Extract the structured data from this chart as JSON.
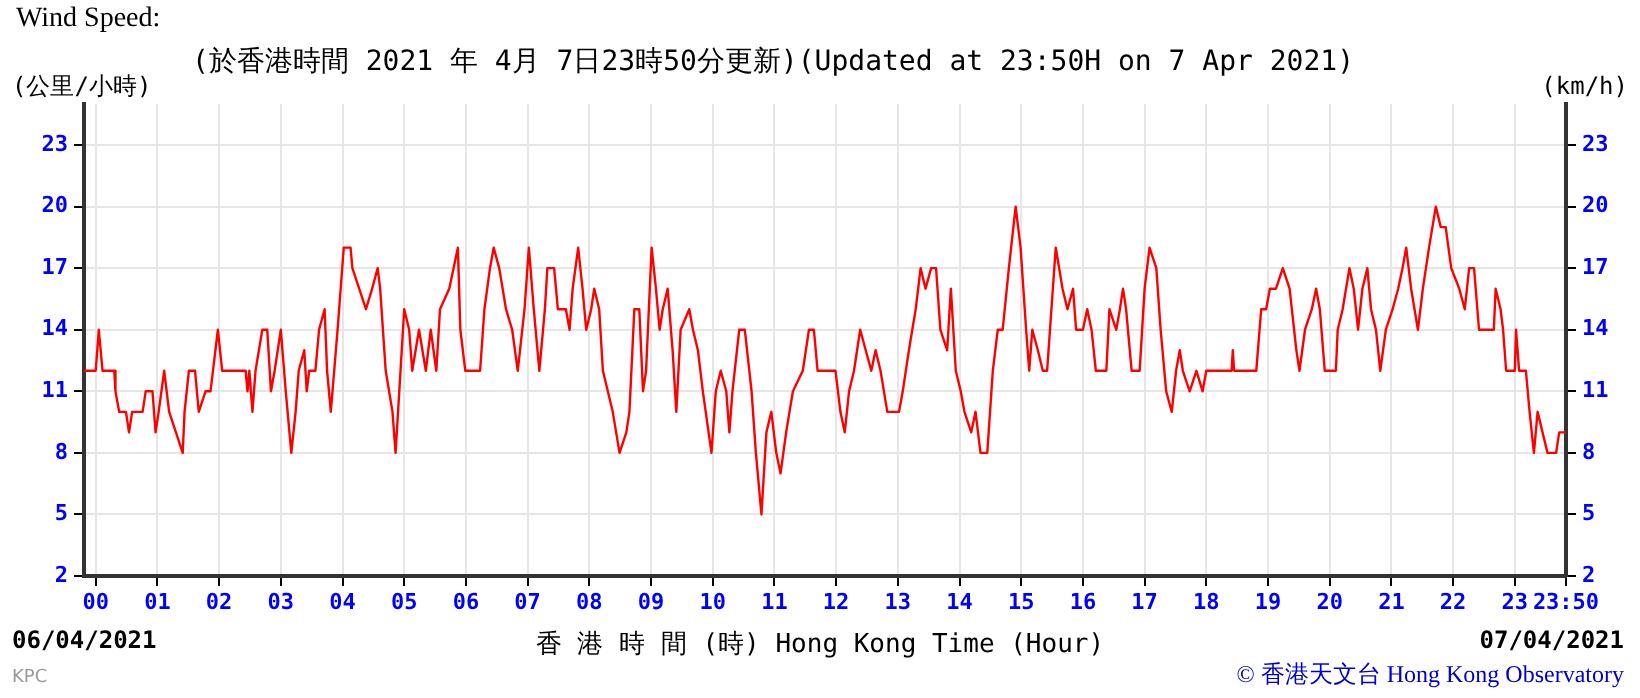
{
  "chart_data": {
    "type": "line",
    "title": "Wind Speed:",
    "subtitle": "(於香港時間 2021 年 4月 7日23時50分更新)(Updated at 23:50H on 7 Apr 2021)",
    "xlabel": "香 港 時 間 (時) Hong Kong Time (Hour)",
    "ylabel": "(公里/小時)",
    "y2label": "(km/h)",
    "annotations": [
      "06/04/2021",
      "07/04/2021",
      "KPC",
      "© 香港天文台 Hong Kong Observatory"
    ],
    "x": [
      -0.19,
      0,
      0.05,
      0.11,
      0.3,
      0.32,
      0.38,
      0.49,
      0.54,
      0.59,
      0.76,
      0.81,
      0.92,
      0.97,
      1.02,
      1.11,
      1.19,
      1.3,
      1.41,
      1.44,
      1.51,
      1.61,
      1.67,
      1.78,
      1.86,
      1.9,
      1.98,
      2.05,
      2.43,
      2.46,
      2.49,
      2.54,
      2.59,
      2.7,
      2.78,
      2.84,
      2.9,
      3.0,
      3.08,
      3.17,
      3.24,
      3.29,
      3.38,
      3.42,
      3.46,
      3.56,
      3.62,
      3.71,
      3.75,
      3.81,
      3.92,
      4.02,
      4.13,
      4.16,
      4.27,
      4.38,
      4.48,
      4.57,
      4.61,
      4.7,
      4.81,
      4.86,
      4.94,
      5.0,
      5.08,
      5.13,
      5.24,
      5.35,
      5.43,
      5.52,
      5.58,
      5.73,
      5.8,
      5.87,
      5.91,
      5.99,
      6.23,
      6.3,
      6.39,
      6.45,
      6.54,
      6.65,
      6.75,
      6.84,
      6.95,
      7.02,
      7.1,
      7.19,
      7.28,
      7.32,
      7.43,
      7.49,
      7.62,
      7.68,
      7.73,
      7.82,
      7.89,
      7.95,
      8.03,
      8.08,
      8.16,
      8.22,
      8.38,
      8.49,
      8.6,
      8.65,
      8.73,
      8.81,
      8.87,
      8.92,
      9.01,
      9.08,
      9.14,
      9.19,
      9.27,
      9.35,
      9.41,
      9.48,
      9.62,
      9.68,
      9.76,
      9.84,
      9.98,
      10.05,
      10.13,
      10.22,
      10.27,
      10.32,
      10.43,
      10.52,
      10.63,
      10.7,
      10.79,
      10.87,
      10.95,
      11.03,
      11.1,
      11.19,
      11.3,
      11.46,
      11.56,
      11.64,
      11.7,
      11.99,
      12.07,
      12.14,
      12.21,
      12.29,
      12.39,
      12.48,
      12.57,
      12.64,
      12.72,
      12.83,
      13.02,
      13.08,
      13.18,
      13.29,
      13.37,
      13.45,
      13.54,
      13.62,
      13.69,
      13.8,
      13.86,
      13.94,
      14.02,
      14.08,
      14.19,
      14.26,
      14.34,
      14.45,
      14.54,
      14.62,
      14.7,
      14.8,
      14.91,
      14.99,
      15.08,
      15.13,
      15.18,
      15.27,
      15.35,
      15.42,
      15.49,
      15.56,
      15.67,
      15.75,
      15.84,
      15.89,
      16.0,
      16.07,
      16.14,
      16.21,
      16.38,
      16.43,
      16.54,
      16.6,
      16.65,
      16.7,
      16.79,
      16.92,
      17.0,
      17.08,
      17.19,
      17.26,
      17.35,
      17.44,
      17.51,
      17.57,
      17.62,
      17.73,
      17.84,
      17.94,
      18.0,
      18.41,
      18.43,
      18.45,
      18.81,
      18.89,
      18.97,
      19.03,
      19.13,
      19.24,
      19.35,
      19.46,
      19.51,
      19.6,
      19.71,
      19.78,
      19.84,
      19.92,
      20.1,
      20.13,
      20.21,
      20.32,
      20.39,
      20.46,
      20.53,
      20.61,
      20.67,
      20.75,
      20.82,
      20.91,
      21.02,
      21.11,
      21.18,
      21.24,
      21.32,
      21.43,
      21.51,
      21.61,
      21.72,
      21.8,
      21.88,
      21.97,
      22.1,
      22.19,
      22.26,
      22.34,
      22.42,
      22.66,
      22.69,
      22.77,
      22.81,
      22.86,
      23.0,
      23.02,
      23.07,
      23.18,
      23.24,
      23.31,
      23.37,
      23.45,
      23.53,
      23.67,
      23.72,
      23.83
    ],
    "series": [
      {
        "color": "#ff0000",
        "values": [
          12,
          12,
          14,
          12,
          12,
          11,
          10,
          10,
          9,
          10,
          10,
          11,
          11,
          9,
          10,
          12,
          10,
          9,
          8,
          10,
          12,
          12,
          10,
          11,
          11,
          12,
          14,
          12,
          12,
          11,
          12,
          10,
          12,
          14,
          14,
          11,
          12,
          14,
          11,
          8,
          10,
          12,
          13,
          11,
          12,
          12,
          14,
          15,
          12,
          10,
          14,
          18,
          18,
          17,
          16,
          15,
          16,
          17,
          16,
          12,
          10,
          8,
          12,
          15,
          14,
          12,
          14,
          12,
          14,
          12,
          15,
          16,
          17,
          18,
          14,
          12,
          12,
          15,
          17,
          18,
          17,
          15,
          14,
          12,
          15,
          18,
          15,
          12,
          15,
          17,
          17,
          15,
          15,
          14,
          16,
          18,
          16,
          14,
          15,
          16,
          15,
          12,
          10,
          8,
          9,
          10,
          15,
          15,
          11,
          12,
          18,
          16,
          14,
          15,
          16,
          13,
          10,
          14,
          15,
          14,
          13,
          11,
          8,
          11,
          12,
          11,
          9,
          11,
          14,
          14,
          11,
          8,
          5,
          9,
          10,
          8,
          7,
          9,
          11,
          12,
          14,
          14,
          12,
          12,
          10,
          9,
          11,
          12,
          14,
          13,
          12,
          13,
          12,
          10,
          10,
          11,
          13,
          15,
          17,
          16,
          17,
          17,
          14,
          13,
          16,
          12,
          11,
          10,
          9,
          10,
          8,
          8,
          12,
          14,
          14,
          17,
          20,
          18,
          14,
          12,
          14,
          13,
          12,
          12,
          15,
          18,
          16,
          15,
          16,
          14,
          14,
          15,
          14,
          12,
          12,
          15,
          14,
          15,
          16,
          15,
          12,
          12,
          16,
          18,
          17,
          14,
          11,
          10,
          12,
          13,
          12,
          11,
          12,
          11,
          12,
          12,
          13,
          12,
          12,
          15,
          15,
          16,
          16,
          17,
          16,
          13,
          12,
          14,
          15,
          16,
          15,
          12,
          12,
          14,
          15,
          17,
          16,
          14,
          16,
          17,
          15,
          14,
          12,
          14,
          15,
          16,
          17,
          18,
          16,
          14,
          16,
          18,
          20,
          19,
          19,
          17,
          16,
          15,
          17,
          17,
          14,
          14,
          16,
          15,
          14,
          12,
          12,
          14,
          12,
          12,
          10,
          8,
          10,
          9,
          8,
          8,
          9,
          9
        ]
      }
    ],
    "xlim": [
      -0.19,
      23.83
    ],
    "xticks": [
      {
        "value": 0,
        "label": "00"
      },
      {
        "value": 1,
        "label": "01"
      },
      {
        "value": 2,
        "label": "02"
      },
      {
        "value": 3,
        "label": "03"
      },
      {
        "value": 4,
        "label": "04"
      },
      {
        "value": 5,
        "label": "05"
      },
      {
        "value": 6,
        "label": "06"
      },
      {
        "value": 7,
        "label": "07"
      },
      {
        "value": 8,
        "label": "08"
      },
      {
        "value": 9,
        "label": "09"
      },
      10,
      11,
      12,
      13,
      14,
      15,
      16,
      17,
      18,
      19,
      20,
      21,
      22,
      23,
      {
        "value": 23.83,
        "label": "23:50"
      }
    ],
    "ylim": [
      2,
      25
    ],
    "yticks": [
      2,
      5,
      8,
      11,
      14,
      17,
      20,
      23
    ],
    "y2lim": [
      2,
      25
    ],
    "y2ticks": [
      2,
      5,
      8,
      11,
      14,
      17,
      20,
      23
    ],
    "grid": true,
    "marker": "none"
  }
}
